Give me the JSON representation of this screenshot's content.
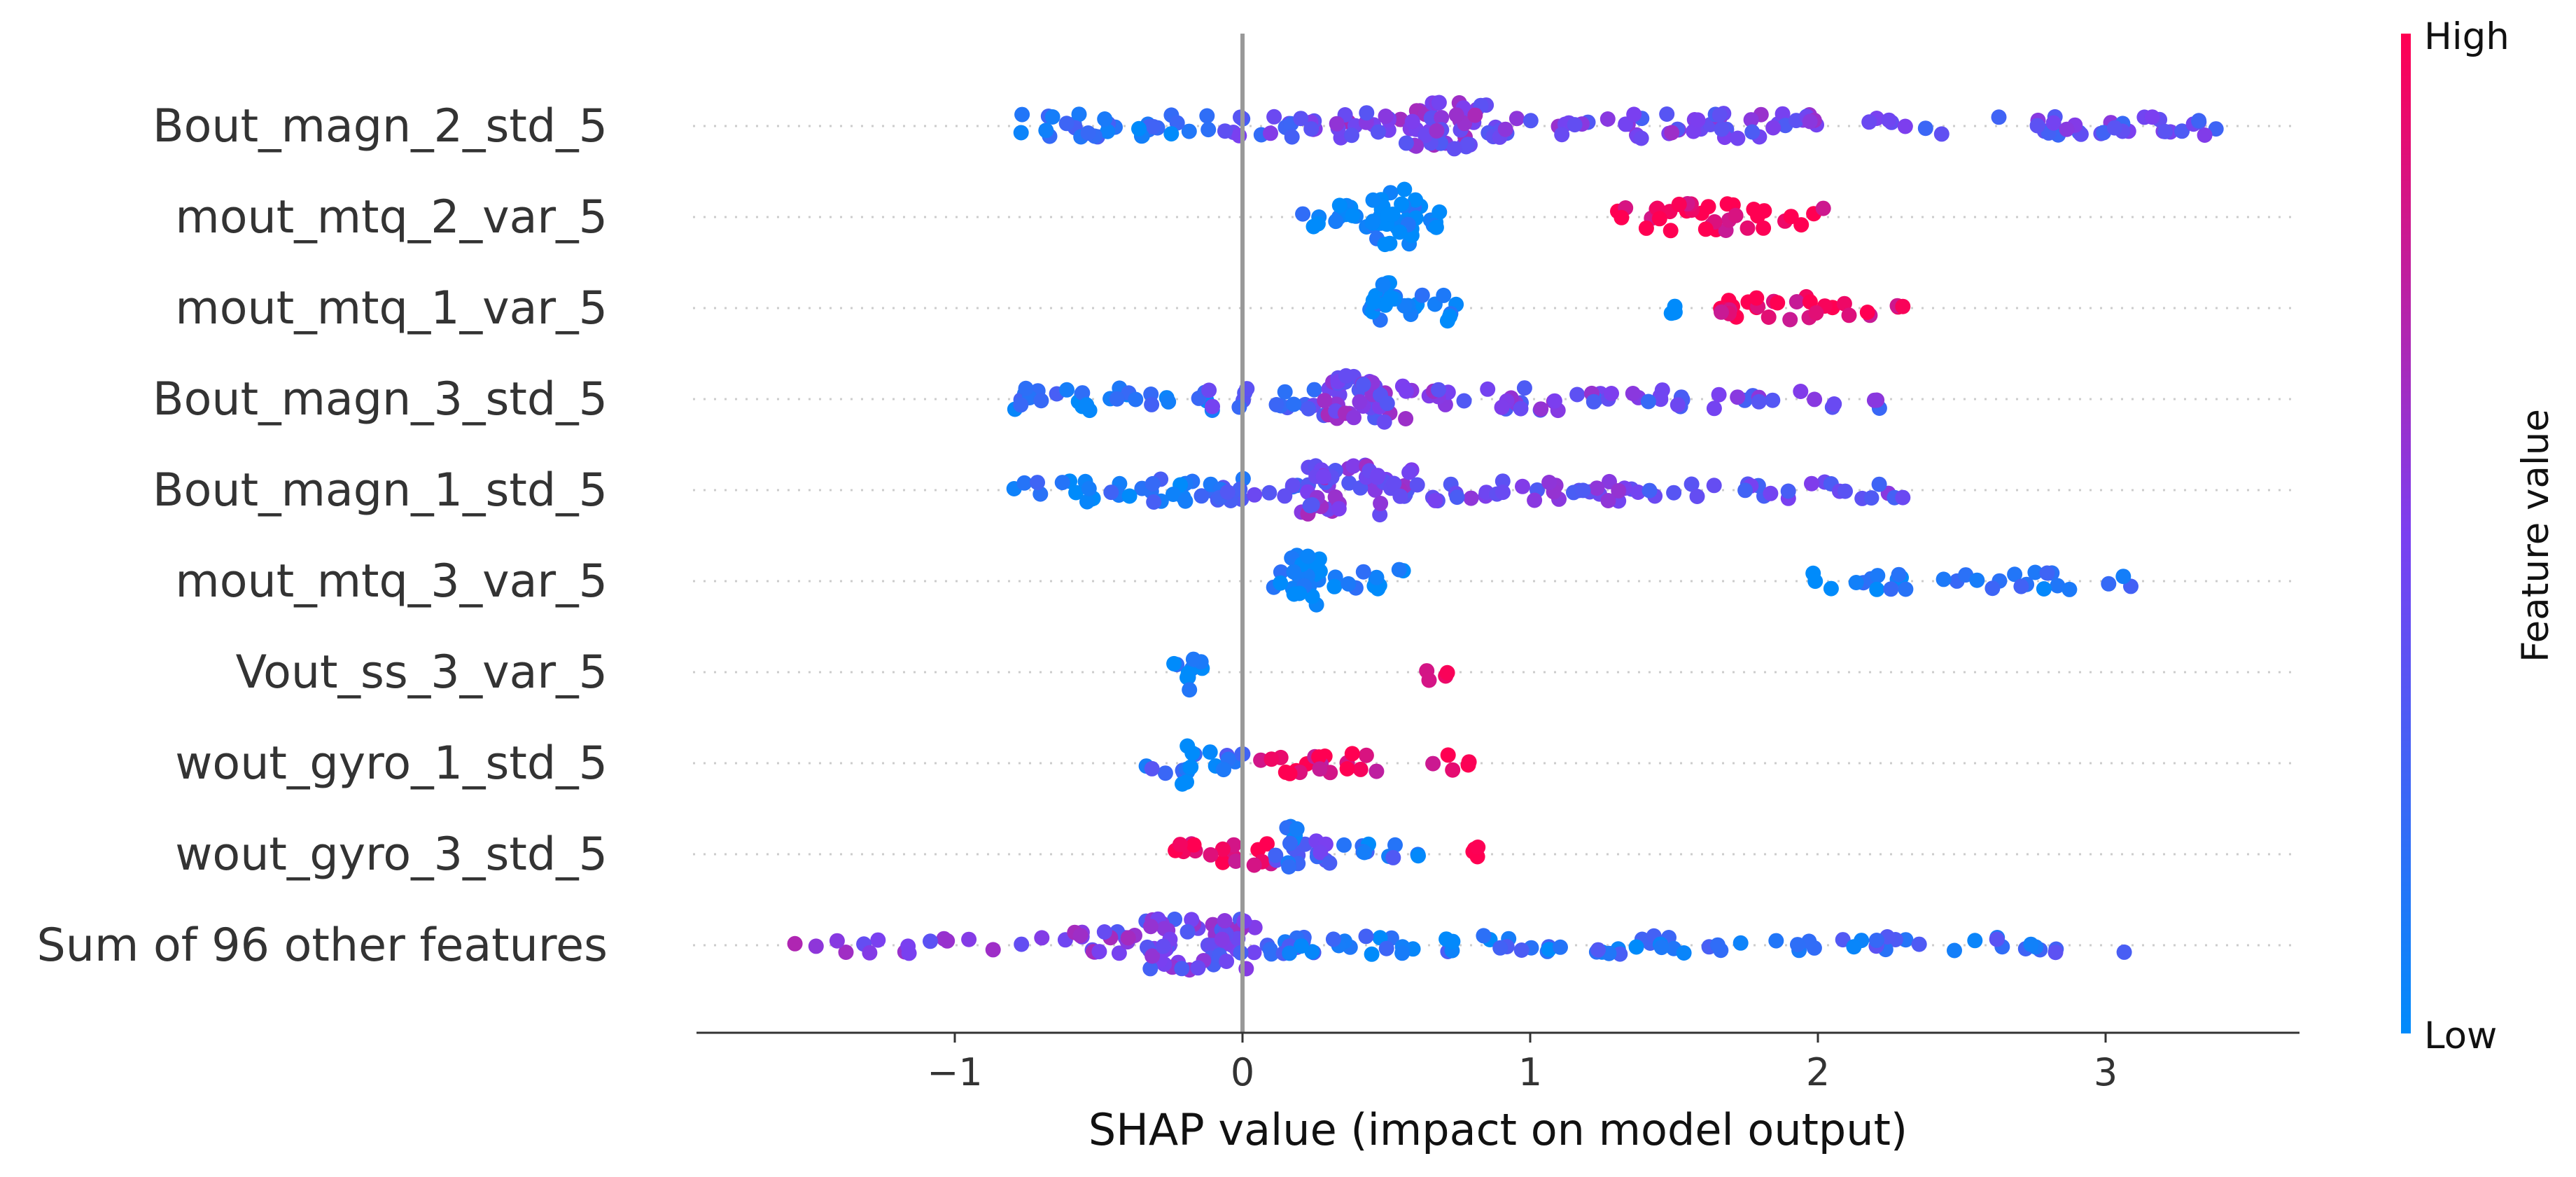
{
  "chart_data": {
    "type": "scatter",
    "subtype": "shap-beeswarm",
    "xlabel": "SHAP value (impact on model output)",
    "xlim": [
      -1.9,
      3.6
    ],
    "xticks": [
      {
        "value": -1,
        "label": "−1"
      },
      {
        "value": 0,
        "label": "0"
      },
      {
        "value": 1,
        "label": "1"
      },
      {
        "value": 2,
        "label": "2"
      },
      {
        "value": 3,
        "label": "3"
      }
    ],
    "zero_line": 0,
    "colorbar": {
      "title": "Feature value",
      "high_label": "High",
      "low_label": "Low",
      "high_color": "#ff0052",
      "mid_color": "#7b3ff0",
      "low_color": "#008bfb"
    },
    "features": [
      {
        "name": "Bout_magn_2_std_5",
        "spans": [
          [
            -0.78,
            -0.1,
            0.12,
            1
          ],
          [
            -0.12,
            0.2,
            0.35,
            0.9
          ],
          [
            0.2,
            0.6,
            0.5,
            1.2
          ],
          [
            0.55,
            0.85,
            0.5,
            3.2
          ],
          [
            0.85,
            2.0,
            0.45,
            1.1
          ],
          [
            2.0,
            3.4,
            0.4,
            0.6
          ]
        ]
      },
      {
        "name": "mout_mtq_2_var_5",
        "spans": [
          [
            0.2,
            0.72,
            0.02,
            1.2
          ],
          [
            0.45,
            0.62,
            0.0,
            3.5
          ],
          [
            1.3,
            1.82,
            0.96,
            1.3
          ],
          [
            1.85,
            2.03,
            0.97,
            0.6
          ]
        ]
      },
      {
        "name": "mout_mtq_1_var_5",
        "spans": [
          [
            0.42,
            0.78,
            0.02,
            1.2
          ],
          [
            0.45,
            0.52,
            0.0,
            3.5
          ],
          [
            1.48,
            1.52,
            0.05,
            0.4
          ],
          [
            1.65,
            2.3,
            0.96,
            1.0
          ]
        ]
      },
      {
        "name": "Bout_magn_3_std_5",
        "spans": [
          [
            -0.8,
            -0.1,
            0.12,
            1
          ],
          [
            -0.12,
            0.25,
            0.35,
            0.9
          ],
          [
            0.25,
            0.6,
            0.5,
            2.9
          ],
          [
            0.6,
            1.3,
            0.45,
            0.9
          ],
          [
            1.3,
            2.22,
            0.4,
            0.6
          ]
        ]
      },
      {
        "name": "Bout_magn_1_std_5",
        "spans": [
          [
            -0.8,
            -0.1,
            0.12,
            1
          ],
          [
            -0.12,
            0.2,
            0.3,
            1.0
          ],
          [
            0.2,
            0.6,
            0.5,
            3.1
          ],
          [
            0.6,
            1.4,
            0.45,
            0.9
          ],
          [
            1.4,
            2.3,
            0.4,
            0.6
          ]
        ]
      },
      {
        "name": "mout_mtq_3_var_5",
        "spans": [
          [
            0.1,
            0.56,
            0.02,
            1.1
          ],
          [
            0.17,
            0.27,
            0.0,
            3.5
          ],
          [
            1.92,
            2.2,
            0.05,
            0.5
          ],
          [
            2.2,
            3.12,
            0.1,
            0.6
          ]
        ]
      },
      {
        "name": "Vout_ss_3_var_5",
        "spans": [
          [
            -0.25,
            -0.1,
            0.03,
            0.8
          ],
          [
            -0.2,
            -0.17,
            0.01,
            3.3
          ],
          [
            0.5,
            0.72,
            0.98,
            0.4
          ]
        ]
      },
      {
        "name": "wout_gyro_1_std_5",
        "spans": [
          [
            -0.35,
            0.05,
            0.2,
            0.9
          ],
          [
            -0.21,
            -0.17,
            0.02,
            3.5
          ],
          [
            0.05,
            0.48,
            0.9,
            1.0
          ],
          [
            0.6,
            0.8,
            0.98,
            0.5
          ]
        ]
      },
      {
        "name": "wout_gyro_3_std_5",
        "spans": [
          [
            -0.28,
            0.1,
            0.92,
            1.1
          ],
          [
            0.1,
            0.3,
            0.4,
            1.3
          ],
          [
            0.15,
            0.2,
            0.05,
            3.5
          ],
          [
            0.3,
            0.68,
            0.15,
            0.7
          ],
          [
            0.8,
            0.82,
            0.98,
            0.3
          ]
        ]
      },
      {
        "name": "Sum of 96 other features",
        "spans": [
          [
            -1.6,
            -0.6,
            0.55,
            0.4
          ],
          [
            -0.6,
            -0.3,
            0.5,
            1.3
          ],
          [
            -0.35,
            0.05,
            0.45,
            3.3
          ],
          [
            0.05,
            1.6,
            0.15,
            0.8
          ],
          [
            1.6,
            2.7,
            0.2,
            0.5
          ],
          [
            2.7,
            3.2,
            0.2,
            0.3
          ]
        ]
      }
    ]
  }
}
